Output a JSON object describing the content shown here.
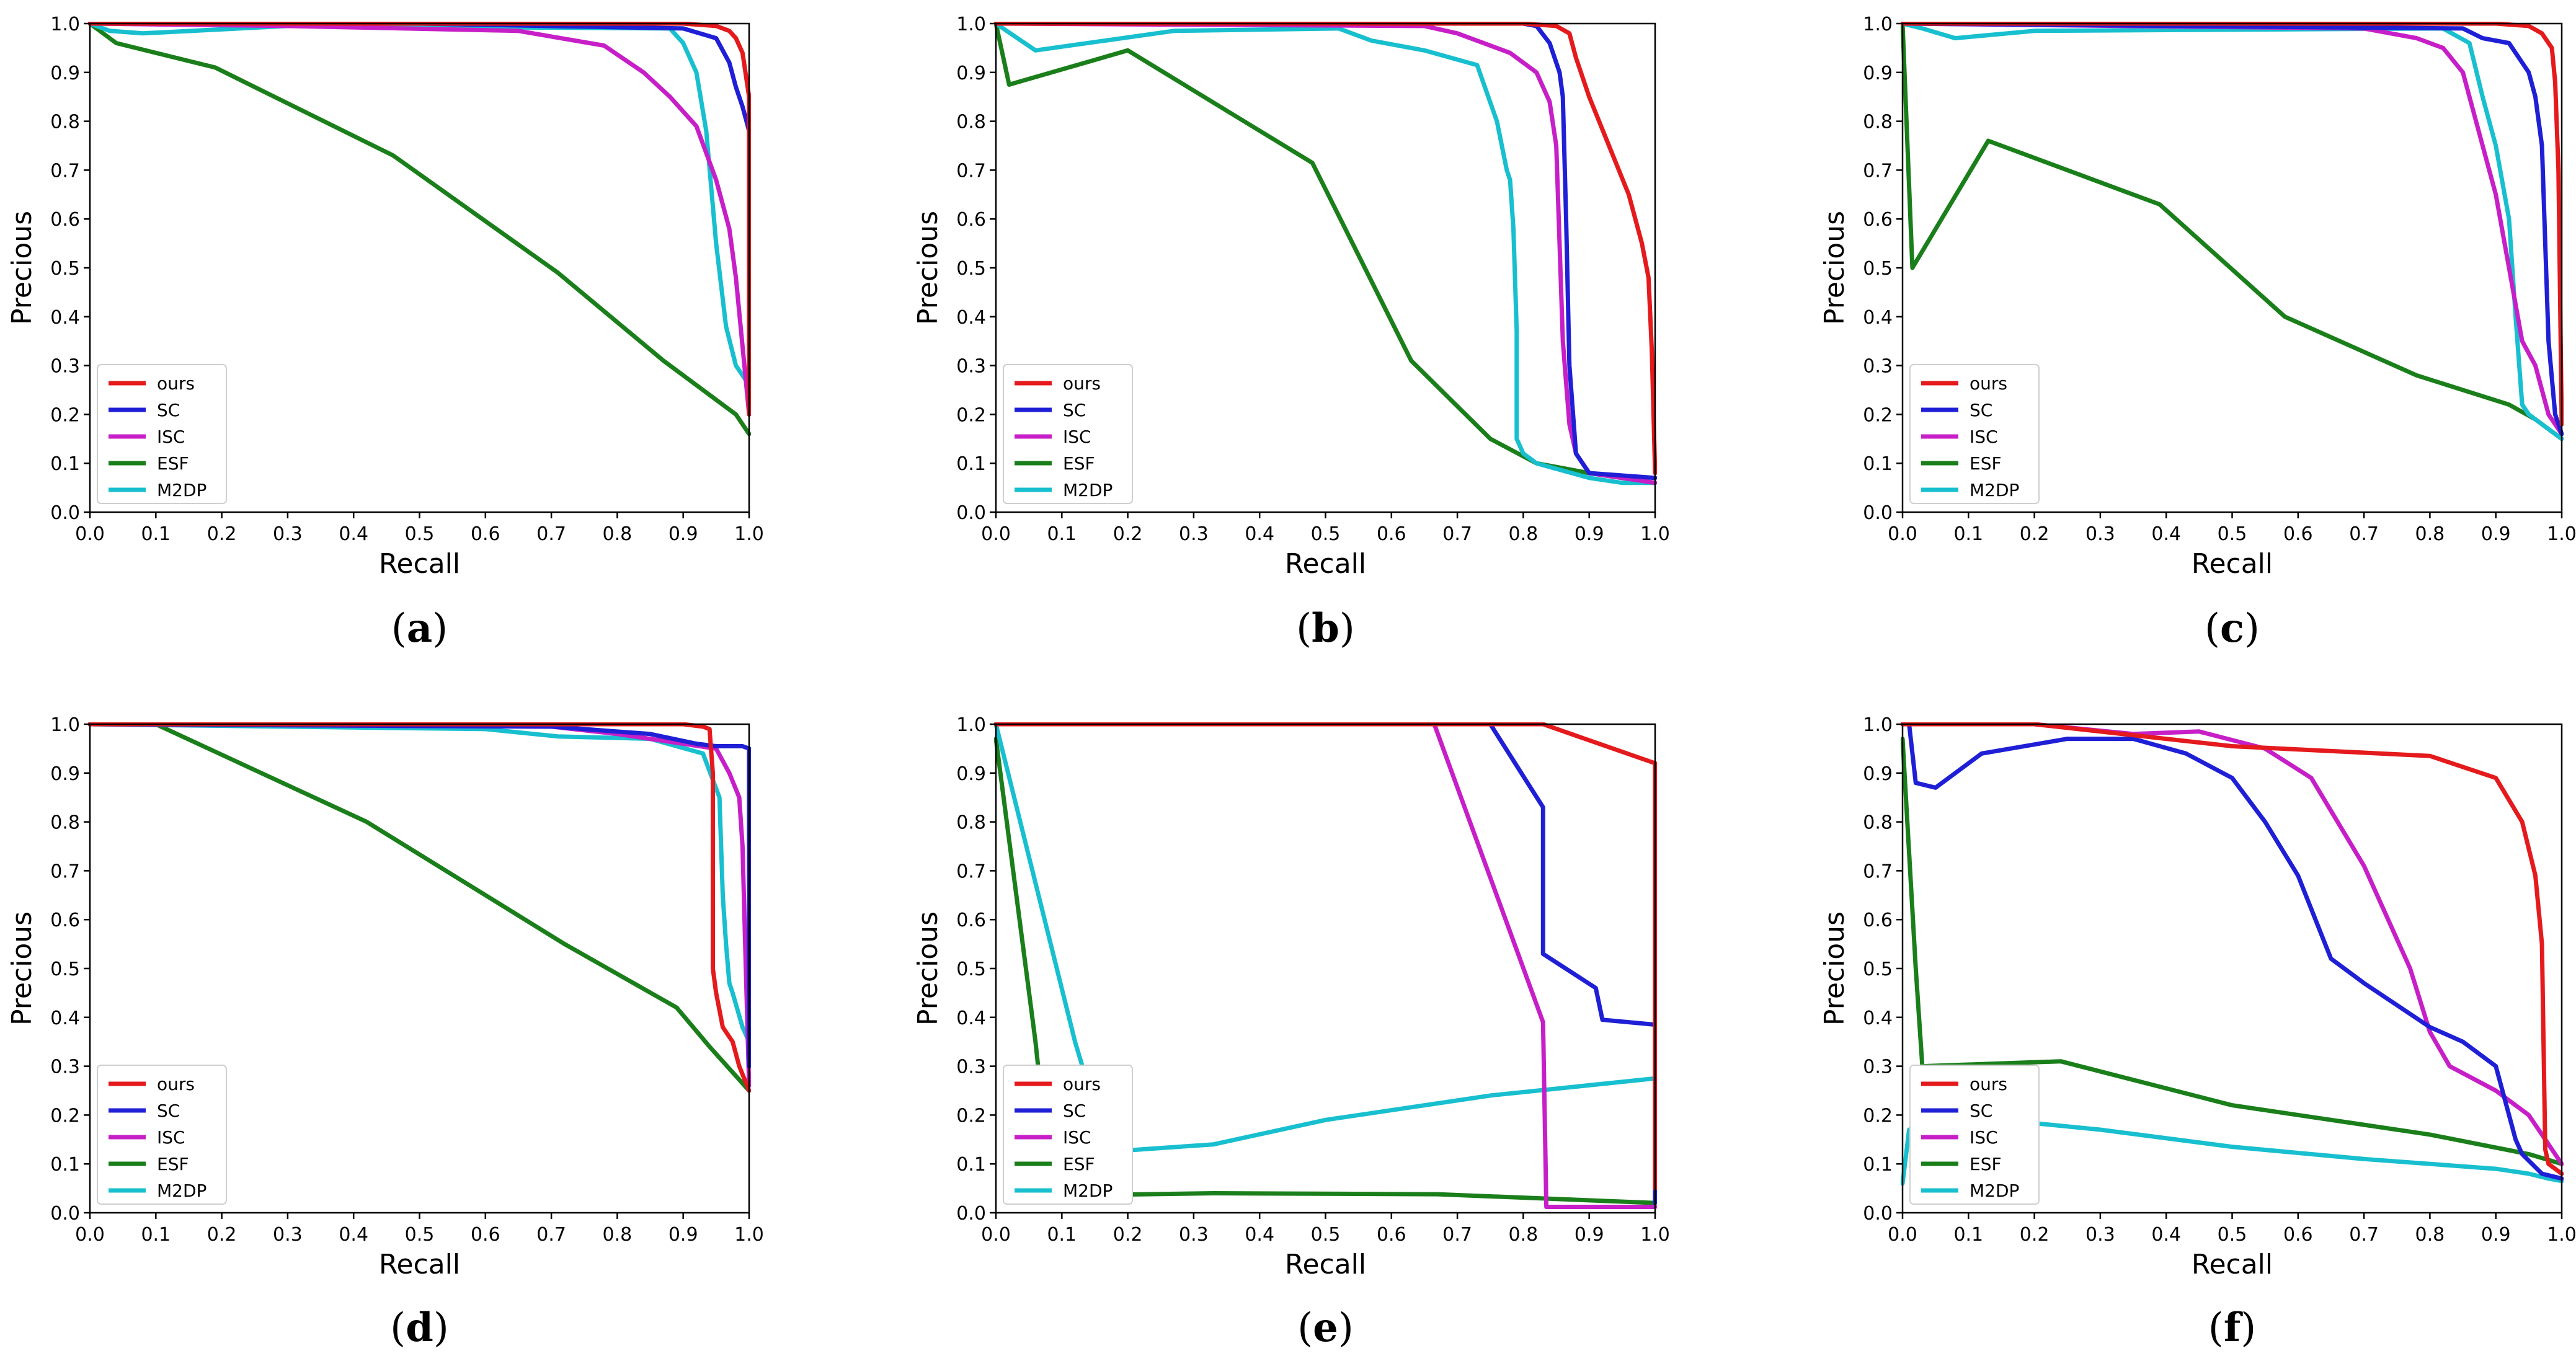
{
  "colors": {
    "ours": "#e41a1c",
    "SC": "#1f1fd6",
    "ISC": "#c71fc7",
    "ESF": "#1a7f1a",
    "M2DP": "#17bfcf"
  },
  "chart_data": [
    {
      "type": "line",
      "panel": "a",
      "xlabel": "Recall",
      "ylabel": "Precious",
      "xlim": [
        0,
        1
      ],
      "ylim": [
        0,
        1
      ],
      "legend": "bottom-left",
      "series": [
        {
          "name": "ours",
          "x": [
            0,
            0.5,
            0.9,
            0.95,
            0.97,
            0.98,
            0.99,
            1.0,
            1.0
          ],
          "y": [
            1,
            1,
            1,
            0.995,
            0.985,
            0.97,
            0.94,
            0.85,
            0.2
          ]
        },
        {
          "name": "SC",
          "x": [
            0,
            0.5,
            0.9,
            0.95,
            0.97,
            0.98,
            0.99,
            1.0,
            1.0
          ],
          "y": [
            1,
            1,
            0.99,
            0.97,
            0.92,
            0.87,
            0.83,
            0.78,
            0.2
          ]
        },
        {
          "name": "ISC",
          "x": [
            0,
            0.3,
            0.65,
            0.78,
            0.84,
            0.88,
            0.92,
            0.95,
            0.97,
            0.98,
            1.0
          ],
          "y": [
            1,
            0.995,
            0.985,
            0.955,
            0.9,
            0.85,
            0.79,
            0.68,
            0.58,
            0.48,
            0.2
          ]
        },
        {
          "name": "ESF",
          "x": [
            0,
            0.04,
            0.19,
            0.46,
            0.71,
            0.87,
            0.98,
            1.0
          ],
          "y": [
            1,
            0.96,
            0.91,
            0.73,
            0.49,
            0.31,
            0.2,
            0.16
          ]
        },
        {
          "name": "M2DP",
          "x": [
            0,
            0.03,
            0.08,
            0.3,
            0.88,
            0.9,
            0.92,
            0.935,
            0.95,
            0.965,
            0.98,
            1.0
          ],
          "y": [
            1,
            0.985,
            0.98,
            0.995,
            0.99,
            0.96,
            0.9,
            0.78,
            0.55,
            0.38,
            0.3,
            0.26
          ]
        }
      ]
    },
    {
      "type": "line",
      "panel": "b",
      "xlabel": "Recall",
      "ylabel": "Precious",
      "xlim": [
        0,
        1
      ],
      "ylim": [
        0,
        1
      ],
      "legend": "bottom-left",
      "series": [
        {
          "name": "ours",
          "x": [
            0,
            0.8,
            0.85,
            0.87,
            0.88,
            0.9,
            0.93,
            0.96,
            0.98,
            0.99,
            0.995,
            1.0
          ],
          "y": [
            1,
            1,
            0.995,
            0.98,
            0.93,
            0.85,
            0.75,
            0.65,
            0.55,
            0.48,
            0.33,
            0.08
          ]
        },
        {
          "name": "SC",
          "x": [
            0,
            0.8,
            0.82,
            0.84,
            0.855,
            0.86,
            0.865,
            0.87,
            0.88,
            0.9,
            1.0
          ],
          "y": [
            1,
            1,
            0.995,
            0.96,
            0.9,
            0.85,
            0.6,
            0.3,
            0.12,
            0.08,
            0.07
          ]
        },
        {
          "name": "ISC",
          "x": [
            0,
            0.65,
            0.7,
            0.78,
            0.82,
            0.84,
            0.85,
            0.86,
            0.87,
            0.88,
            0.9,
            1.0
          ],
          "y": [
            1,
            0.995,
            0.98,
            0.94,
            0.9,
            0.84,
            0.75,
            0.35,
            0.18,
            0.12,
            0.08,
            0.06
          ]
        },
        {
          "name": "ESF",
          "x": [
            0,
            0.02,
            0.2,
            0.48,
            0.63,
            0.75,
            0.82,
            0.9,
            1.0
          ],
          "y": [
            1,
            0.875,
            0.945,
            0.715,
            0.31,
            0.15,
            0.1,
            0.08,
            0.06
          ]
        },
        {
          "name": "M2DP",
          "x": [
            0,
            0.06,
            0.27,
            0.52,
            0.57,
            0.65,
            0.73,
            0.76,
            0.775,
            0.78,
            0.785,
            0.79,
            0.79,
            0.8,
            0.82,
            0.9,
            0.95,
            1.0
          ],
          "y": [
            1,
            0.945,
            0.985,
            0.99,
            0.965,
            0.945,
            0.915,
            0.8,
            0.7,
            0.68,
            0.58,
            0.37,
            0.15,
            0.12,
            0.1,
            0.07,
            0.06,
            0.06
          ]
        }
      ]
    },
    {
      "type": "line",
      "panel": "c",
      "xlabel": "Recall",
      "ylabel": "Precious",
      "xlim": [
        0,
        1
      ],
      "ylim": [
        0,
        1
      ],
      "legend": "bottom-left",
      "series": [
        {
          "name": "ours",
          "x": [
            0,
            0.9,
            0.95,
            0.97,
            0.985,
            0.99,
            0.995,
            1.0
          ],
          "y": [
            1,
            1,
            0.995,
            0.98,
            0.95,
            0.88,
            0.7,
            0.18
          ]
        },
        {
          "name": "SC",
          "x": [
            0,
            0.85,
            0.88,
            0.92,
            0.95,
            0.96,
            0.965,
            0.97,
            0.975,
            0.98,
            0.99,
            1.0
          ],
          "y": [
            1,
            0.99,
            0.97,
            0.96,
            0.9,
            0.85,
            0.8,
            0.75,
            0.55,
            0.35,
            0.2,
            0.16
          ]
        },
        {
          "name": "ISC",
          "x": [
            0,
            0.7,
            0.78,
            0.82,
            0.85,
            0.87,
            0.9,
            0.92,
            0.94,
            0.96,
            0.98,
            1.0
          ],
          "y": [
            1,
            0.99,
            0.97,
            0.95,
            0.9,
            0.8,
            0.65,
            0.5,
            0.35,
            0.3,
            0.2,
            0.16
          ]
        },
        {
          "name": "ESF",
          "x": [
            0,
            0.015,
            0.13,
            0.39,
            0.58,
            0.78,
            0.92,
            0.96,
            1.0
          ],
          "y": [
            1,
            0.5,
            0.76,
            0.63,
            0.4,
            0.28,
            0.22,
            0.19,
            0.15
          ]
        },
        {
          "name": "M2DP",
          "x": [
            0,
            0.03,
            0.08,
            0.2,
            0.82,
            0.86,
            0.88,
            0.9,
            0.92,
            0.93,
            0.94,
            0.95,
            0.97,
            1.0
          ],
          "y": [
            1,
            0.99,
            0.97,
            0.985,
            0.99,
            0.96,
            0.85,
            0.75,
            0.6,
            0.4,
            0.22,
            0.2,
            0.18,
            0.15
          ]
        }
      ]
    },
    {
      "type": "line",
      "panel": "d",
      "xlabel": "Recall",
      "ylabel": "Precious",
      "xlim": [
        0,
        1
      ],
      "ylim": [
        0,
        1
      ],
      "legend": "bottom-left",
      "series": [
        {
          "name": "ours",
          "x": [
            0,
            0.9,
            0.93,
            0.94,
            0.945,
            0.945,
            0.95,
            0.96,
            0.975,
            0.985,
            1.0
          ],
          "y": [
            1,
            1,
            0.995,
            0.99,
            0.9,
            0.5,
            0.45,
            0.38,
            0.35,
            0.3,
            0.25
          ]
        },
        {
          "name": "SC",
          "x": [
            0,
            0.7,
            0.85,
            0.92,
            0.95,
            0.99,
            1.0,
            1.0
          ],
          "y": [
            1,
            0.995,
            0.98,
            0.96,
            0.955,
            0.955,
            0.95,
            0.3
          ]
        },
        {
          "name": "ISC",
          "x": [
            0,
            0.7,
            0.8,
            0.9,
            0.95,
            0.97,
            0.985,
            0.99,
            0.995,
            1.0
          ],
          "y": [
            1,
            0.995,
            0.98,
            0.96,
            0.95,
            0.9,
            0.85,
            0.75,
            0.5,
            0.26
          ]
        },
        {
          "name": "ESF",
          "x": [
            0,
            0.1,
            0.42,
            0.72,
            0.89,
            0.94,
            0.98,
            1.0
          ],
          "y": [
            1,
            1,
            0.8,
            0.55,
            0.42,
            0.34,
            0.28,
            0.25
          ]
        },
        {
          "name": "M2DP",
          "x": [
            0,
            0.6,
            0.71,
            0.85,
            0.93,
            0.955,
            0.96,
            0.965,
            0.97,
            0.975,
            0.99,
            1.0
          ],
          "y": [
            1,
            0.99,
            0.975,
            0.97,
            0.94,
            0.85,
            0.65,
            0.55,
            0.47,
            0.45,
            0.38,
            0.35
          ]
        }
      ]
    },
    {
      "type": "line",
      "panel": "e",
      "xlabel": "Recall",
      "ylabel": "Precious",
      "xlim": [
        0,
        1
      ],
      "ylim": [
        0,
        1
      ],
      "legend": "bottom-left",
      "series": [
        {
          "name": "ours",
          "x": [
            0,
            0.83,
            1.0,
            1.0
          ],
          "y": [
            1,
            1,
            0.92,
            0.05
          ]
        },
        {
          "name": "SC",
          "x": [
            0,
            0.75,
            0.83,
            0.83,
            0.91,
            0.92,
            1.0,
            1.0
          ],
          "y": [
            1,
            1,
            0.83,
            0.53,
            0.46,
            0.395,
            0.385,
            0.02
          ]
        },
        {
          "name": "ISC",
          "x": [
            0,
            0.665,
            0.83,
            0.835,
            1.0
          ],
          "y": [
            1,
            1,
            0.39,
            0.012,
            0.012
          ]
        },
        {
          "name": "ESF",
          "x": [
            0,
            0.06,
            0.085,
            0.33,
            0.67,
            1.0
          ],
          "y": [
            0.97,
            0.35,
            0.035,
            0.04,
            0.038,
            0.02
          ]
        },
        {
          "name": "M2DP",
          "x": [
            0,
            0.12,
            0.17,
            0.33,
            0.5,
            0.75,
            1.0
          ],
          "y": [
            1,
            0.35,
            0.125,
            0.14,
            0.19,
            0.24,
            0.275
          ]
        }
      ]
    },
    {
      "type": "line",
      "panel": "f",
      "xlabel": "Recall",
      "ylabel": "Precious",
      "xlim": [
        0,
        1
      ],
      "ylim": [
        0,
        1
      ],
      "legend": "bottom-left",
      "series": [
        {
          "name": "ours",
          "x": [
            0,
            0.2,
            0.5,
            0.8,
            0.9,
            0.94,
            0.96,
            0.97,
            0.975,
            0.98,
            1.0
          ],
          "y": [
            1,
            1,
            0.955,
            0.935,
            0.89,
            0.8,
            0.69,
            0.55,
            0.13,
            0.1,
            0.08
          ]
        },
        {
          "name": "SC",
          "x": [
            0,
            0.01,
            0.02,
            0.05,
            0.12,
            0.25,
            0.35,
            0.43,
            0.5,
            0.55,
            0.6,
            0.65,
            0.7,
            0.8,
            0.85,
            0.9,
            0.92,
            0.93,
            0.94,
            0.97,
            1.0
          ],
          "y": [
            1,
            1,
            0.88,
            0.87,
            0.94,
            0.97,
            0.97,
            0.94,
            0.89,
            0.8,
            0.69,
            0.52,
            0.47,
            0.38,
            0.35,
            0.3,
            0.2,
            0.15,
            0.12,
            0.08,
            0.07
          ]
        },
        {
          "name": "ISC",
          "x": [
            0,
            0.2,
            0.35,
            0.45,
            0.55,
            0.62,
            0.7,
            0.77,
            0.8,
            0.83,
            0.9,
            0.95,
            1.0
          ],
          "y": [
            1,
            1,
            0.98,
            0.985,
            0.95,
            0.89,
            0.71,
            0.5,
            0.37,
            0.3,
            0.25,
            0.2,
            0.1
          ]
        },
        {
          "name": "ESF",
          "x": [
            0,
            0.02,
            0.03,
            0.24,
            0.5,
            0.8,
            0.95,
            1.0
          ],
          "y": [
            0.97,
            0.5,
            0.3,
            0.31,
            0.22,
            0.16,
            0.12,
            0.1
          ]
        },
        {
          "name": "M2DP",
          "x": [
            0,
            0.01,
            0.05,
            0.15,
            0.3,
            0.5,
            0.7,
            0.9,
            0.95,
            0.98,
            1.0
          ],
          "y": [
            0.06,
            0.17,
            0.2,
            0.19,
            0.17,
            0.135,
            0.11,
            0.09,
            0.08,
            0.07,
            0.065
          ]
        }
      ]
    }
  ],
  "legend_labels": [
    "ours",
    "SC",
    "ISC",
    "ESF",
    "M2DP"
  ],
  "ticks": [
    "0.0",
    "0.1",
    "0.2",
    "0.3",
    "0.4",
    "0.5",
    "0.6",
    "0.7",
    "0.8",
    "0.9",
    "1.0"
  ],
  "captions": [
    {
      "open": "(",
      "letter": "a",
      "close": ")"
    },
    {
      "open": "(",
      "letter": "b",
      "close": ")"
    },
    {
      "open": "(",
      "letter": "c",
      "close": ")"
    },
    {
      "open": "(",
      "letter": "d",
      "close": ")"
    },
    {
      "open": "(",
      "letter": "e",
      "close": ")"
    },
    {
      "open": "(",
      "letter": "f",
      "close": ")"
    }
  ]
}
